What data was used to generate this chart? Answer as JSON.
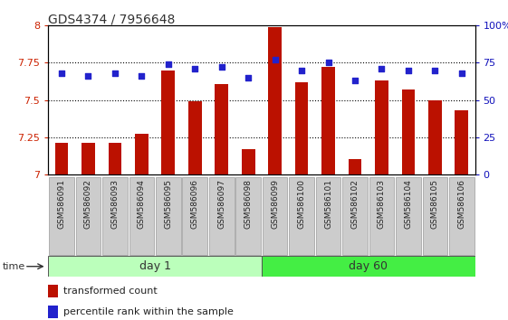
{
  "title": "GDS4374 / 7956648",
  "samples": [
    "GSM586091",
    "GSM586092",
    "GSM586093",
    "GSM586094",
    "GSM586095",
    "GSM586096",
    "GSM586097",
    "GSM586098",
    "GSM586099",
    "GSM586100",
    "GSM586101",
    "GSM586102",
    "GSM586103",
    "GSM586104",
    "GSM586105",
    "GSM586106"
  ],
  "bar_values": [
    7.21,
    7.21,
    7.21,
    7.27,
    7.7,
    7.49,
    7.61,
    7.17,
    7.99,
    7.62,
    7.72,
    7.1,
    7.63,
    7.57,
    7.5,
    7.43
  ],
  "dot_values": [
    68,
    66,
    68,
    66,
    74,
    71,
    72,
    65,
    77,
    70,
    75,
    63,
    71,
    70,
    70,
    68
  ],
  "ylim_left": [
    7.0,
    8.0
  ],
  "ylim_right": [
    0,
    100
  ],
  "yticks_left": [
    7.0,
    7.25,
    7.5,
    7.75,
    8.0
  ],
  "yticks_right": [
    0,
    25,
    50,
    75,
    100
  ],
  "ytick_labels_left": [
    "7",
    "7.25",
    "7.5",
    "7.75",
    "8"
  ],
  "ytick_labels_right": [
    "0",
    "25",
    "50",
    "75",
    "100%"
  ],
  "bar_color": "#bb1100",
  "dot_color": "#2222cc",
  "bar_bottom": 7.0,
  "day1_group": 8,
  "day60_group": 8,
  "day1_label": "day 1",
  "day60_label": "day 60",
  "day1_color": "#bbffbb",
  "day60_color": "#44ee44",
  "legend_bar_label": "transformed count",
  "legend_dot_label": "percentile rank within the sample",
  "grid_color": "#000000",
  "tick_label_color_left": "#cc2200",
  "tick_label_color_right": "#1111bb",
  "bar_width": 0.5,
  "title_color": "#333333",
  "xlabel_box_color": "#cccccc",
  "xlabel_box_edge": "#999999"
}
